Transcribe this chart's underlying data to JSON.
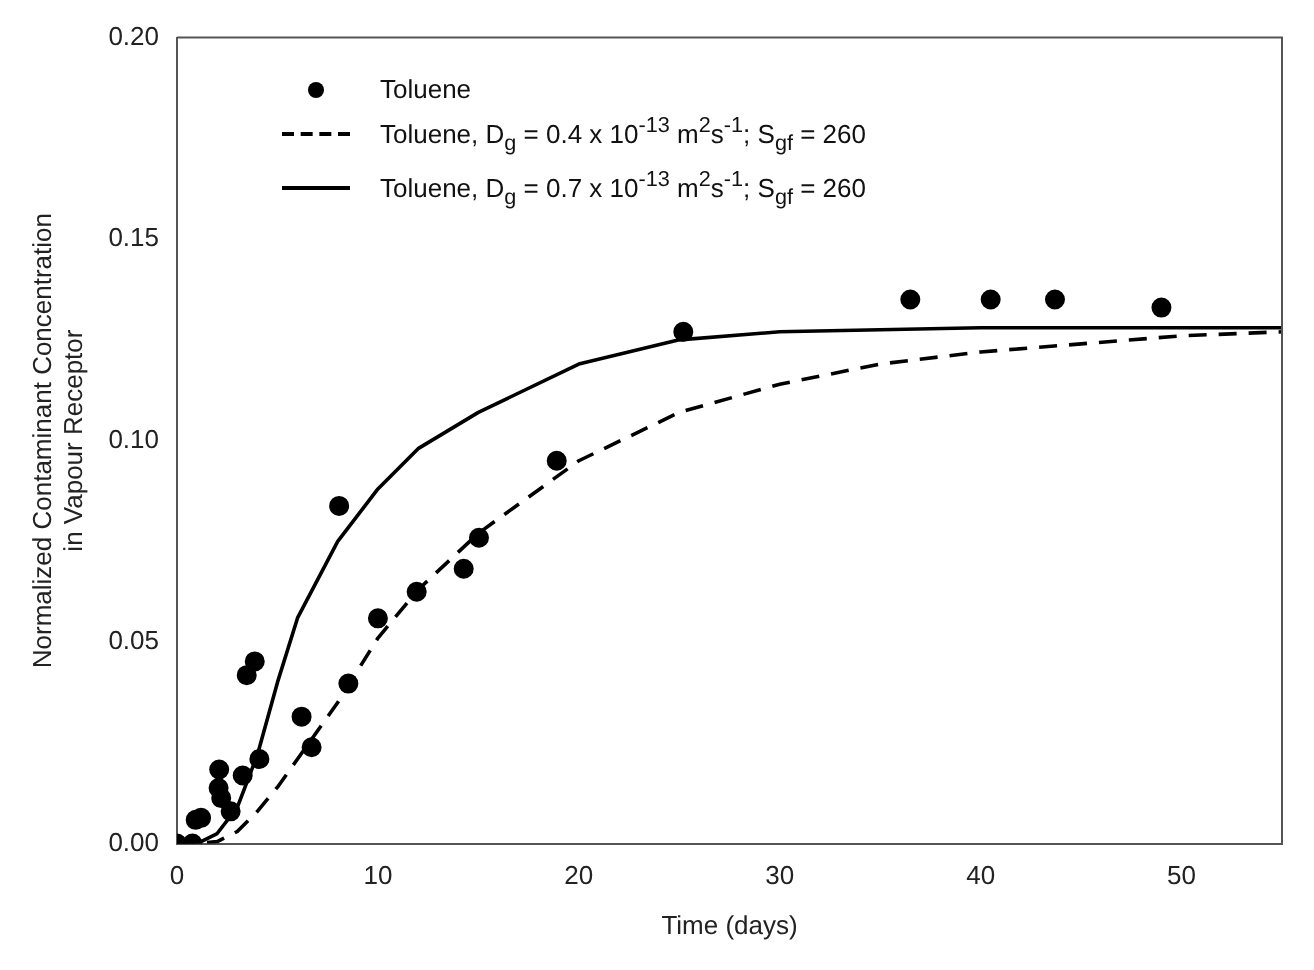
{
  "chart_data": {
    "type": "scatter",
    "xlabel": "Time (days)",
    "ylabel": "Normalized Contaminant Concentration\nin Vapour Receptor",
    "xlim": [
      0,
      55
    ],
    "xticks": [
      0,
      10,
      20,
      30,
      40,
      50
    ],
    "ylim": [
      0,
      0.2
    ],
    "yticks": [
      {
        "value": 0,
        "label": "0.00"
      },
      {
        "value": 0.05,
        "label": "0.05"
      },
      {
        "value": 0.1,
        "label": "0.10"
      },
      {
        "value": 0.15,
        "label": "0.15"
      },
      {
        "value": 0.2,
        "label": "0.20"
      }
    ],
    "grid": false,
    "legend": "top left",
    "series": [
      {
        "name": "Toluene",
        "marker": "circle",
        "color": "#000000",
        "x": [
          0,
          0.77,
          0.93,
          1.2,
          2.07,
          2.1,
          2.2,
          2.67,
          3.27,
          3.47,
          3.87,
          4.1,
          6.2,
          6.7,
          8.07,
          8.53,
          10,
          11.93,
          14.27,
          15.03,
          18.9,
          25.2,
          36.5,
          40.5,
          43.7,
          49
        ],
        "values": [
          0,
          0,
          0.0059,
          0.0064,
          0.0138,
          0.0184,
          0.0113,
          0.008,
          0.0169,
          0.0418,
          0.0452,
          0.021,
          0.0315,
          0.0239,
          0.0838,
          0.0397,
          0.0559,
          0.0625,
          0.0682,
          0.0759,
          0.095,
          0.127,
          0.135,
          0.135,
          0.135,
          0.133
        ]
      },
      {
        "name": "Toluene, D$_{g}$ = 0.4 x 10$^{-13}$ m$^{2}$s$^{-1}$; S$_{gf}$ = 260",
        "type": "line",
        "line_style": "dashed",
        "marker": "none",
        "color": "#000000",
        "x": [
          0,
          1,
          2,
          3,
          4,
          5,
          6,
          7,
          8,
          10,
          12,
          15,
          20,
          25,
          30,
          35,
          40,
          45,
          50,
          55
        ],
        "values": [
          0,
          0,
          0.0005,
          0.003,
          0.008,
          0.014,
          0.021,
          0.028,
          0.035,
          0.051,
          0.063,
          0.077,
          0.095,
          0.107,
          0.114,
          0.119,
          0.122,
          0.124,
          0.126,
          0.127
        ]
      },
      {
        "name": "Toluene, D$_{g}$ = 0.7 x 10$^{-13}$ m$^{2}$s$^{-1}$; S$_{gf}$ = 260",
        "type": "line",
        "line_style": "solid",
        "marker": "none",
        "color": "#000000",
        "x": [
          0,
          1,
          2,
          3,
          4,
          5,
          6,
          8,
          10,
          12,
          15,
          20,
          25,
          30,
          40,
          55
        ],
        "values": [
          0,
          0,
          0.0025,
          0.009,
          0.022,
          0.04,
          0.056,
          0.075,
          0.088,
          0.098,
          0.107,
          0.119,
          0.125,
          0.127,
          0.128,
          0.128
        ]
      }
    ]
  }
}
